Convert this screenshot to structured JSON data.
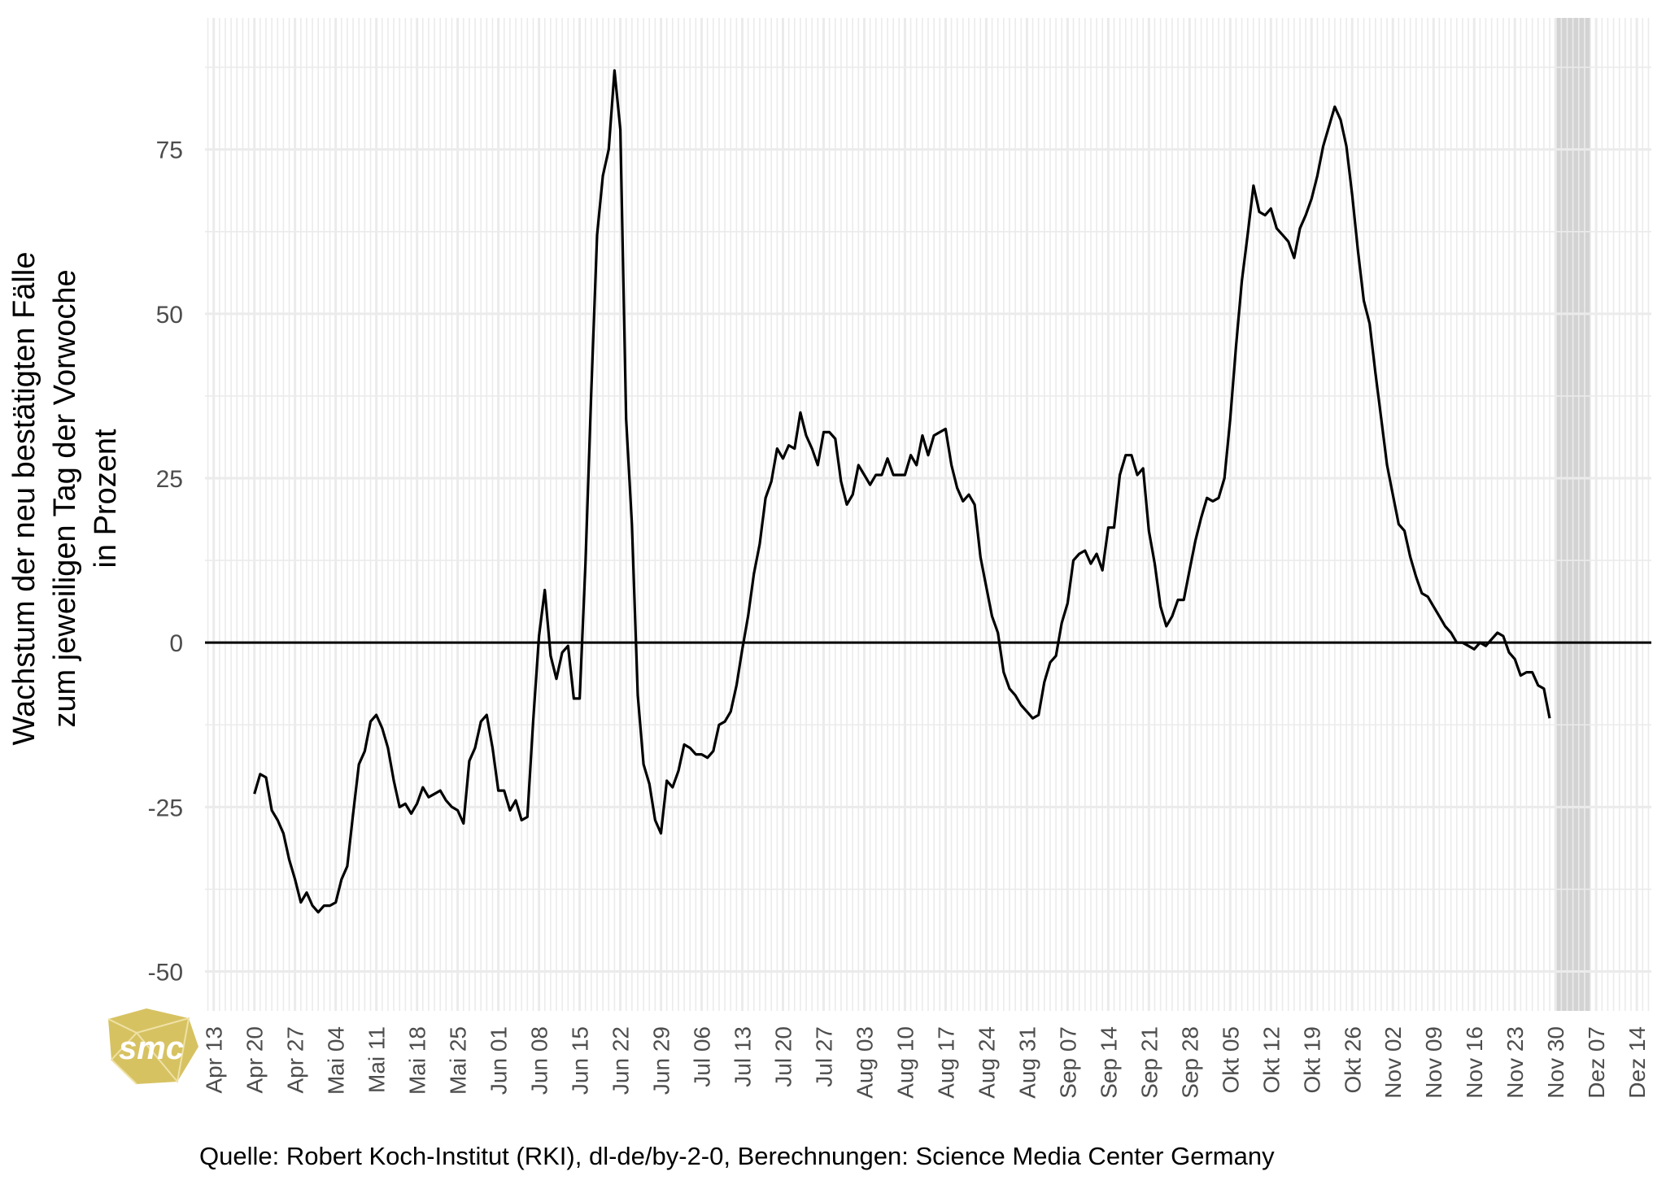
{
  "chart_data": {
    "type": "line",
    "ylabel": [
      "Wachstum der neu bestätigten Fälle",
      "zum jeweiligen Tag der Vorwoche",
      "in Prozent"
    ],
    "xlabel": "",
    "caption": "Quelle: Robert Koch-Institut (RKI), dl-de/by-2-0, Berechnungen: Science Media Center Germany",
    "logo_text": "smc",
    "x_start_label": "Apr 20",
    "x_tick_labels": [
      "Apr 13",
      "Apr 20",
      "Apr 27",
      "Mai 04",
      "Mai 11",
      "Mai 18",
      "Mai 25",
      "Jun 01",
      "Jun 08",
      "Jun 15",
      "Jun 22",
      "Jun 29",
      "Jul 06",
      "Jul 13",
      "Jul 20",
      "Jul 27",
      "Aug 03",
      "Aug 10",
      "Aug 17",
      "Aug 24",
      "Aug 31",
      "Sep 07",
      "Sep 14",
      "Sep 21",
      "Sep 28",
      "Okt 05",
      "Okt 12",
      "Okt 19",
      "Okt 26",
      "Nov 02",
      "Nov 09",
      "Nov 16",
      "Nov 23",
      "Nov 30",
      "Dez 07",
      "Dez 14"
    ],
    "y_ticks": [
      -50,
      -25,
      0,
      25,
      50,
      75
    ],
    "ylim": [
      -56,
      95
    ],
    "xlim_days": [
      -8.5,
      240.5
    ],
    "grid": true,
    "reference_line": 0,
    "highlight_range_days": [
      224,
      230
    ],
    "highlight_color": "#d3d3d3",
    "line_color": "#000000",
    "series": [
      {
        "values": [
          -23,
          -20,
          -20.5,
          -25.5,
          -27,
          -29,
          -33,
          -36,
          -39.5,
          -38,
          -40,
          -41,
          -40,
          -40,
          -39.5,
          -36,
          -34,
          -26,
          -18.5,
          -16.5,
          -12,
          -11,
          -13,
          -16,
          -21,
          -25,
          -24.5,
          -26,
          -24.5,
          -22,
          -23.5,
          -23,
          -22.5,
          -24,
          -25,
          -25.5,
          -27.5,
          -18,
          -16,
          -12,
          -11,
          -16,
          -22.5,
          -22.5,
          -25.5,
          -24,
          -27,
          -26.5,
          -12,
          1,
          8,
          -2,
          -5.5,
          -1.5,
          -0.5,
          -8.5,
          -8.5,
          12,
          38,
          62,
          71,
          75,
          87,
          78,
          34,
          18,
          -8,
          -18.5,
          -21.5,
          -27,
          -29,
          -21,
          -22,
          -19.5,
          -15.5,
          -16,
          -17,
          -17,
          -17.5,
          -16.5,
          -12.5,
          -12,
          -10.5,
          -6.5,
          -1,
          4,
          10.5,
          15,
          22,
          24.5,
          29.5,
          28,
          30,
          29.5,
          35,
          31.5,
          29.5,
          27,
          32,
          32,
          31,
          24.5,
          21,
          22.5,
          27,
          25.5,
          24,
          25.5,
          25.5,
          28,
          25.5,
          25.5,
          25.5,
          28.5,
          27,
          31.5,
          28.5,
          31.5,
          32,
          32.5,
          27,
          23.5,
          21.5,
          22.5,
          21,
          13,
          8.5,
          4,
          1.5,
          -4.5,
          -7,
          -8,
          -9.5,
          -10.5,
          -11.5,
          -11,
          -6,
          -3,
          -2,
          3,
          6,
          12.5,
          13.5,
          14,
          12,
          13.5,
          11,
          17.5,
          17.5,
          25.5,
          28.5,
          28.5,
          25.5,
          26.5,
          17,
          12,
          5.5,
          2.5,
          4,
          6.5,
          6.5,
          11,
          15.5,
          19,
          22,
          21.5,
          22,
          25,
          34,
          45,
          55,
          62,
          69.5,
          65.5,
          65,
          66,
          63,
          62,
          61,
          58.5,
          63,
          65,
          67.5,
          71,
          75.5,
          78.5,
          81.5,
          79.5,
          75.5,
          68,
          59.5,
          52,
          48.5,
          41,
          34,
          27,
          22.5,
          18,
          17,
          13,
          10,
          7.5,
          7,
          5.5,
          4,
          2.5,
          1.5,
          0,
          0,
          -0.5,
          -1,
          0,
          -0.5,
          0.5,
          1.5,
          1,
          -1.5,
          -2.5,
          -5,
          -4.5,
          -4.5,
          -6.5,
          -7,
          -11.5
        ]
      }
    ]
  }
}
